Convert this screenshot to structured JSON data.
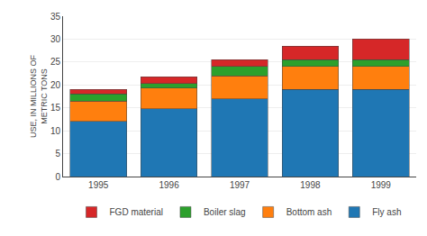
{
  "chart_data": {
    "type": "bar",
    "stacked": true,
    "categories": [
      "1995",
      "1996",
      "1997",
      "1998",
      "1999"
    ],
    "series": [
      {
        "name": "Fly ash",
        "values": [
          12.0,
          14.8,
          17.0,
          19.0,
          19.0
        ]
      },
      {
        "name": "Bottom ash",
        "values": [
          4.5,
          4.5,
          5.0,
          5.0,
          5.0
        ]
      },
      {
        "name": "Boiler slag",
        "values": [
          1.5,
          1.0,
          2.0,
          1.5,
          1.5
        ]
      },
      {
        "name": "FGD material",
        "values": [
          1.0,
          1.5,
          1.5,
          3.0,
          4.5
        ]
      }
    ],
    "ylabel": "USE, IN MILLIONS OF\nMETRIC TONS",
    "ylim": [
      0,
      35
    ],
    "yticks": [
      0,
      5,
      10,
      15,
      20,
      25,
      30,
      35
    ],
    "grid": true,
    "legend": "bottom"
  }
}
